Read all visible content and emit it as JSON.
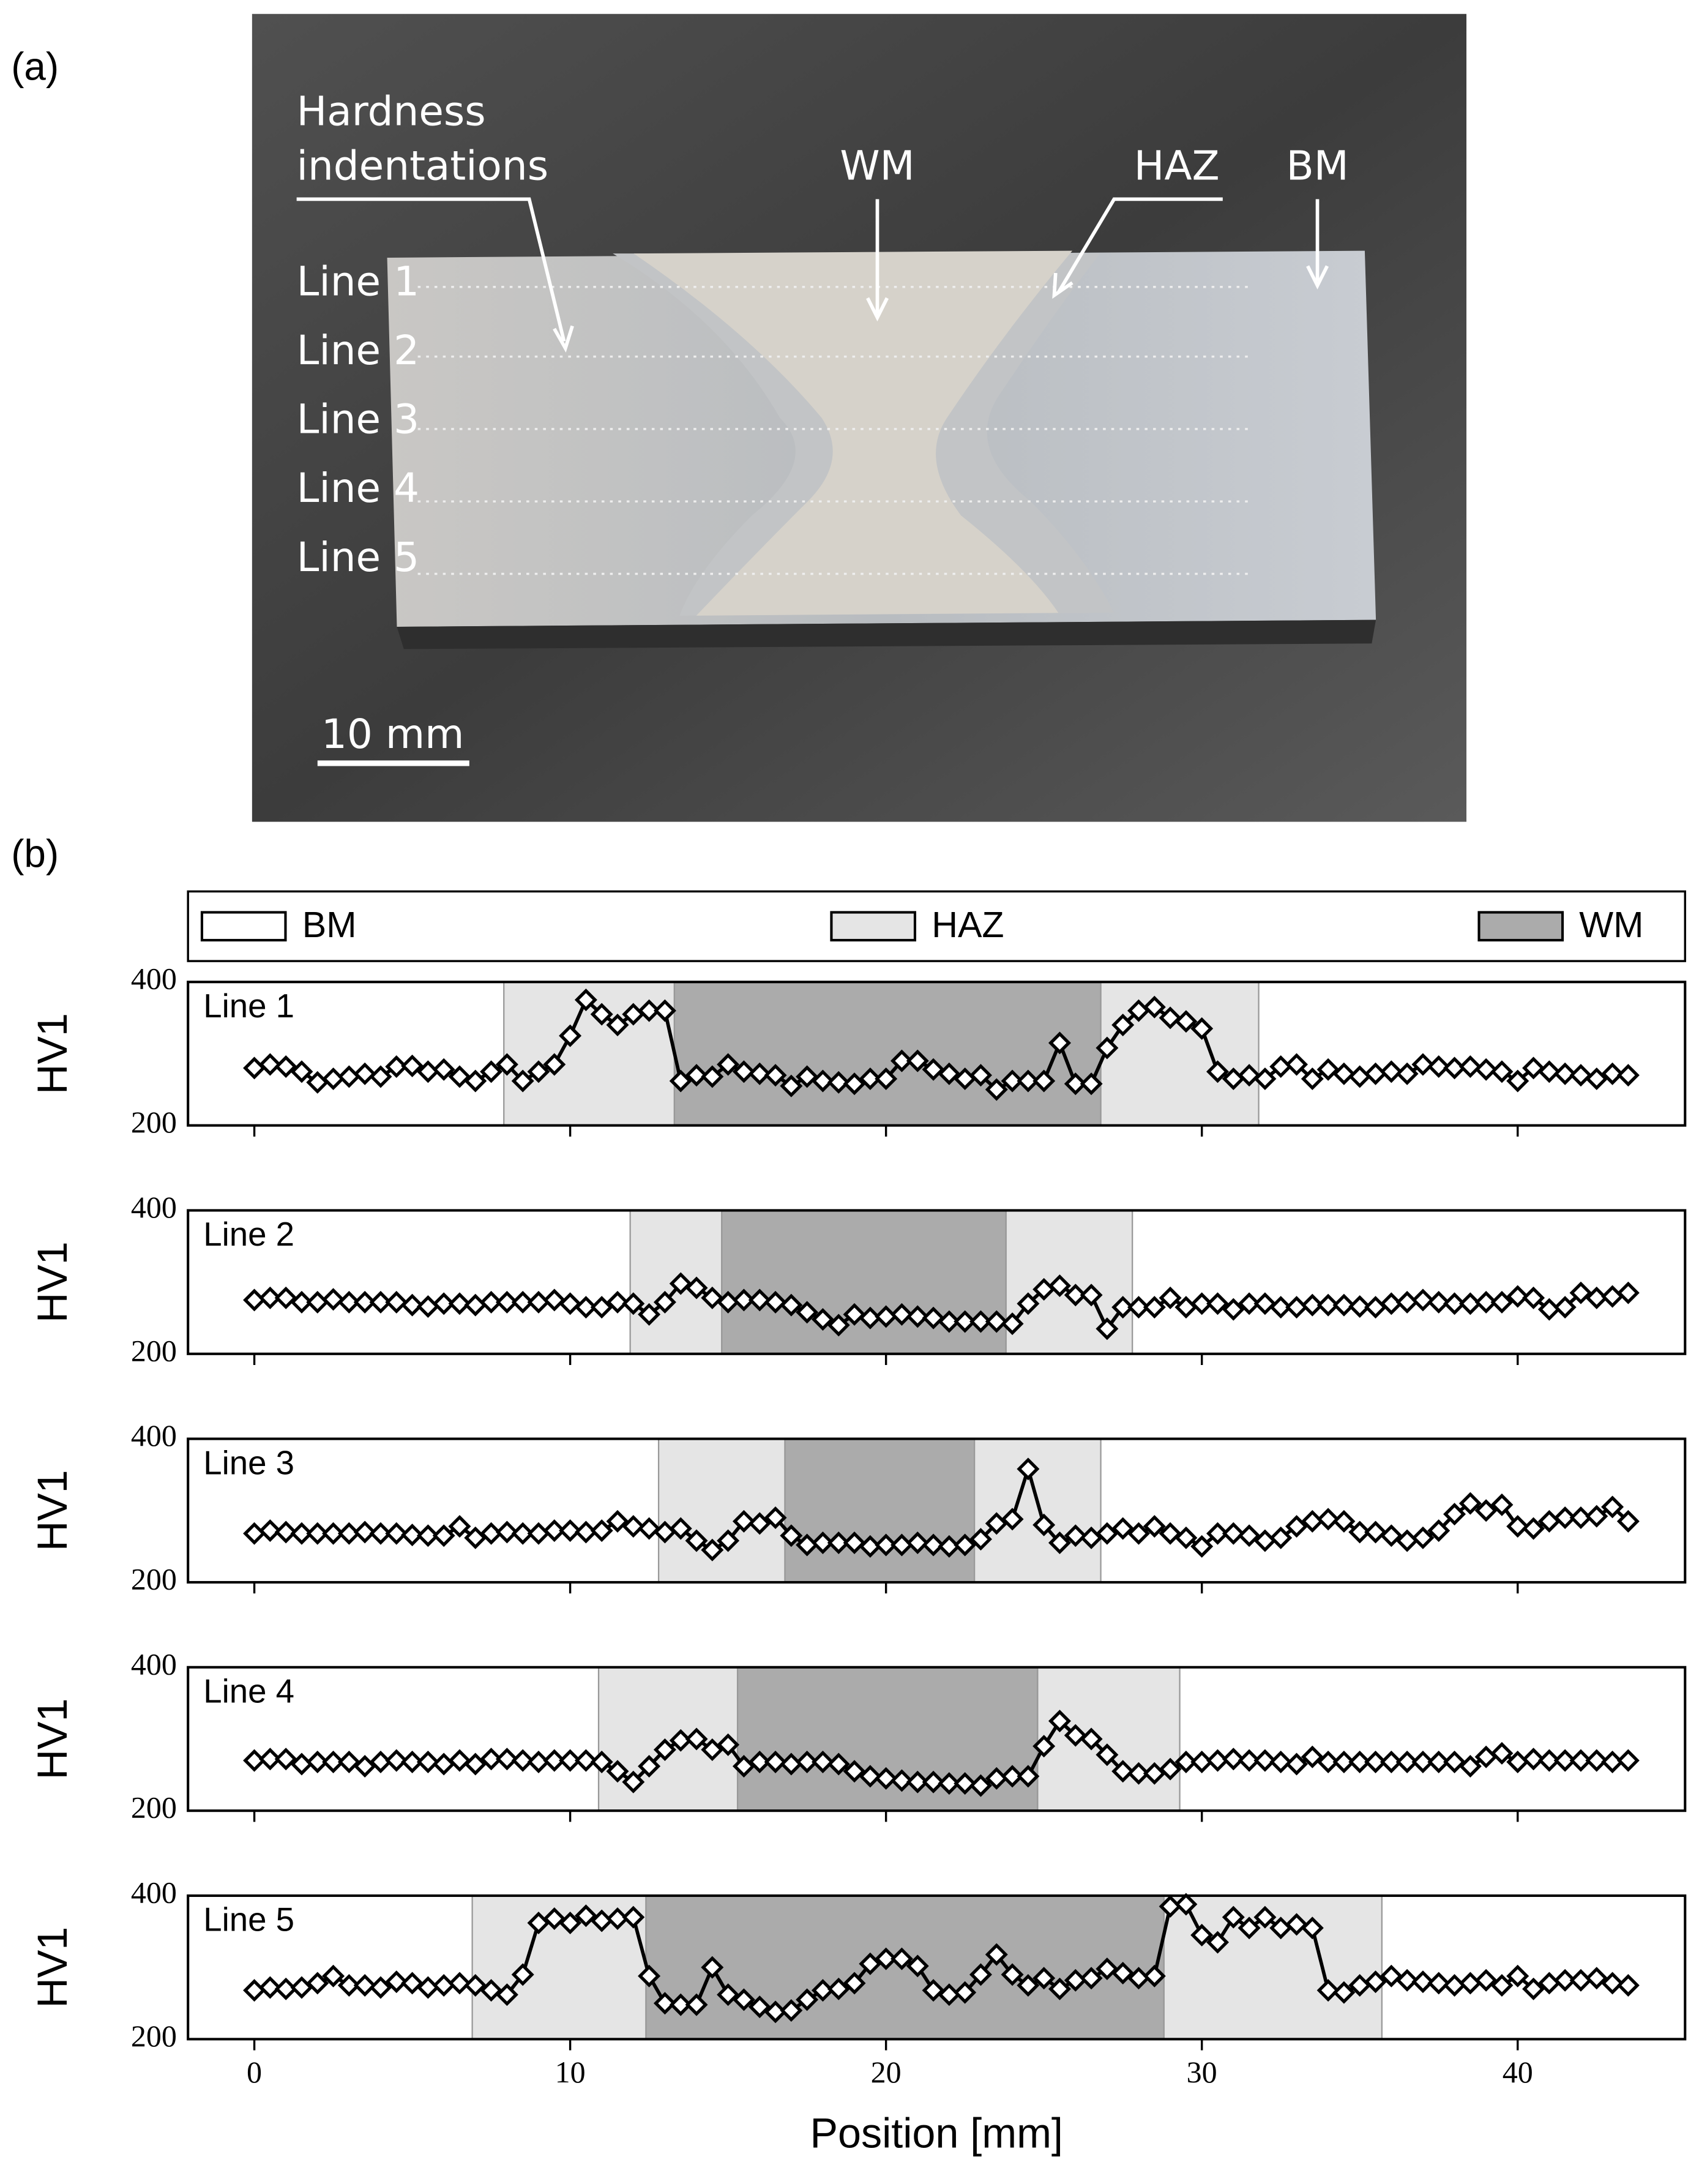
{
  "panel_a": {
    "label": "(a)",
    "annotations": [
      "Hardness",
      "indentations",
      "WM",
      "HAZ",
      "BM"
    ],
    "line_labels": [
      "Line 1",
      "Line 2",
      "Line 3",
      "Line 4",
      "Line 5"
    ],
    "scale_bar": "10 mm"
  },
  "panel_b_label": "(b)",
  "legend": [
    {
      "name": "BM",
      "color": "#ffffff"
    },
    {
      "name": "HAZ",
      "color": "#e5e5e5"
    },
    {
      "name": "WM",
      "color": "#ababab"
    }
  ],
  "chart_data": [
    {
      "type": "line",
      "title": "Line 1",
      "ylabel": "HV1",
      "xlim": [
        -2.1,
        45.3
      ],
      "ylim": [
        200,
        400
      ],
      "xticks": [
        0,
        10,
        20,
        30,
        40
      ],
      "yticks": [
        200,
        400
      ],
      "regions": [
        {
          "start": 7.9,
          "end": 13.3,
          "color": "#e5e5e5"
        },
        {
          "start": 13.3,
          "end": 26.8,
          "color": "#ababab"
        },
        {
          "start": 26.8,
          "end": 31.8,
          "color": "#e5e5e5"
        }
      ],
      "x": [
        0,
        0.5,
        1,
        1.5,
        2,
        2.5,
        3,
        3.5,
        4,
        4.5,
        5,
        5.5,
        6,
        6.5,
        7,
        7.5,
        8,
        8.5,
        9,
        9.5,
        10,
        10.5,
        11,
        11.5,
        12,
        12.5,
        13,
        13.5,
        14,
        14.5,
        15,
        15.5,
        16,
        16.5,
        17,
        17.5,
        18,
        18.5,
        19,
        19.5,
        20,
        20.5,
        21,
        21.5,
        22,
        22.5,
        23,
        23.5,
        24,
        24.5,
        25,
        25.5,
        26,
        26.5,
        27,
        27.5,
        28,
        28.5,
        29,
        29.5,
        30,
        30.5,
        31,
        31.5,
        32,
        32.5,
        33,
        33.5,
        34,
        34.5,
        35,
        35.5,
        36,
        36.5,
        37,
        37.5,
        38,
        38.5,
        39,
        39.5,
        40,
        40.5,
        41,
        41.5,
        42,
        42.5,
        43,
        43.5
      ],
      "series": [
        {
          "color": "#000000",
          "values": [
            280,
            285,
            282,
            275,
            260,
            265,
            268,
            272,
            268,
            282,
            283,
            275,
            278,
            268,
            262,
            275,
            285,
            262,
            275,
            285,
            325,
            375,
            355,
            340,
            355,
            360,
            360,
            262,
            270,
            268,
            285,
            275,
            272,
            270,
            255,
            268,
            262,
            260,
            258,
            265,
            265,
            290,
            290,
            278,
            272,
            265,
            270,
            250,
            262,
            262,
            262,
            315,
            258,
            258,
            308,
            340,
            360,
            365,
            350,
            345,
            335,
            275,
            265,
            270,
            265,
            282,
            285,
            265,
            278,
            272,
            268,
            272,
            275,
            272,
            285,
            282,
            280,
            282,
            278,
            275,
            262,
            280,
            275,
            272,
            270,
            265,
            272,
            270
          ]
        }
      ]
    },
    {
      "type": "line",
      "title": "Line 2",
      "ylabel": "HV1",
      "xlim": [
        -2.1,
        45.3
      ],
      "ylim": [
        200,
        400
      ],
      "xticks": [
        0,
        10,
        20,
        30,
        40
      ],
      "yticks": [
        200,
        400
      ],
      "regions": [
        {
          "start": 11.9,
          "end": 14.8,
          "color": "#e5e5e5"
        },
        {
          "start": 14.8,
          "end": 23.8,
          "color": "#ababab"
        },
        {
          "start": 23.8,
          "end": 27.8,
          "color": "#e5e5e5"
        }
      ],
      "x": [
        0,
        0.5,
        1,
        1.5,
        2,
        2.5,
        3,
        3.5,
        4,
        4.5,
        5,
        5.5,
        6,
        6.5,
        7,
        7.5,
        8,
        8.5,
        9,
        9.5,
        10,
        10.5,
        11,
        11.5,
        12,
        12.5,
        13,
        13.5,
        14,
        14.5,
        15,
        15.5,
        16,
        16.5,
        17,
        17.5,
        18,
        18.5,
        19,
        19.5,
        20,
        20.5,
        21,
        21.5,
        22,
        22.5,
        23,
        23.5,
        24,
        24.5,
        25,
        25.5,
        26,
        26.5,
        27,
        27.5,
        28,
        28.5,
        29,
        29.5,
        30,
        30.5,
        31,
        31.5,
        32,
        32.5,
        33,
        33.5,
        34,
        34.5,
        35,
        35.5,
        36,
        36.5,
        37,
        37.5,
        38,
        38.5,
        39,
        39.5,
        40,
        40.5,
        41,
        41.5,
        42,
        42.5,
        43,
        43.5
      ],
      "series": [
        {
          "color": "#000000",
          "values": [
            275,
            278,
            278,
            272,
            272,
            276,
            272,
            272,
            272,
            272,
            268,
            266,
            270,
            270,
            268,
            272,
            272,
            272,
            272,
            275,
            270,
            265,
            265,
            272,
            270,
            255,
            272,
            298,
            292,
            278,
            272,
            275,
            275,
            272,
            268,
            258,
            248,
            240,
            255,
            250,
            252,
            255,
            252,
            250,
            245,
            245,
            245,
            245,
            242,
            270,
            290,
            295,
            282,
            282,
            235,
            265,
            265,
            265,
            278,
            265,
            270,
            270,
            262,
            270,
            270,
            265,
            265,
            268,
            268,
            268,
            266,
            265,
            270,
            272,
            275,
            272,
            270,
            270,
            272,
            272,
            280,
            278,
            262,
            265,
            285,
            278,
            280,
            285
          ]
        }
      ]
    },
    {
      "type": "line",
      "title": "Line 3",
      "ylabel": "HV1",
      "xlim": [
        -2.1,
        45.3
      ],
      "ylim": [
        200,
        400
      ],
      "xticks": [
        0,
        10,
        20,
        30,
        40
      ],
      "yticks": [
        200,
        400
      ],
      "regions": [
        {
          "start": 12.8,
          "end": 16.8,
          "color": "#e5e5e5"
        },
        {
          "start": 16.8,
          "end": 22.8,
          "color": "#ababab"
        },
        {
          "start": 22.8,
          "end": 26.8,
          "color": "#e5e5e5"
        }
      ],
      "x": [
        0,
        0.5,
        1,
        1.5,
        2,
        2.5,
        3,
        3.5,
        4,
        4.5,
        5,
        5.5,
        6,
        6.5,
        7,
        7.5,
        8,
        8.5,
        9,
        9.5,
        10,
        10.5,
        11,
        11.5,
        12,
        12.5,
        13,
        13.5,
        14,
        14.5,
        15,
        15.5,
        16,
        16.5,
        17,
        17.5,
        18,
        18.5,
        19,
        19.5,
        20,
        20.5,
        21,
        21.5,
        22,
        22.5,
        23,
        23.5,
        24,
        24.5,
        25,
        25.5,
        26,
        26.5,
        27,
        27.5,
        28,
        28.5,
        29,
        29.5,
        30,
        30.5,
        31,
        31.5,
        32,
        32.5,
        33,
        33.5,
        34,
        34.5,
        35,
        35.5,
        36,
        36.5,
        37,
        37.5,
        38,
        38.5,
        39,
        39.5,
        40,
        40.5,
        41,
        41.5,
        42,
        42.5,
        43,
        43.5
      ],
      "series": [
        {
          "color": "#000000",
          "values": [
            268,
            272,
            270,
            268,
            268,
            268,
            268,
            270,
            268,
            268,
            266,
            265,
            265,
            278,
            262,
            268,
            270,
            268,
            268,
            272,
            272,
            270,
            272,
            285,
            278,
            275,
            270,
            275,
            258,
            245,
            258,
            285,
            282,
            290,
            265,
            252,
            255,
            255,
            255,
            250,
            252,
            252,
            255,
            252,
            250,
            252,
            260,
            282,
            288,
            358,
            280,
            255,
            265,
            262,
            268,
            275,
            268,
            278,
            268,
            262,
            250,
            268,
            268,
            265,
            258,
            262,
            278,
            285,
            288,
            285,
            270,
            270,
            265,
            258,
            262,
            272,
            295,
            310,
            300,
            308,
            278,
            275,
            285,
            290,
            290,
            292,
            305,
            285
          ]
        }
      ]
    },
    {
      "type": "line",
      "title": "Line 4",
      "ylabel": "HV1",
      "xlim": [
        -2.1,
        45.3
      ],
      "ylim": [
        200,
        400
      ],
      "xticks": [
        0,
        10,
        20,
        30,
        40
      ],
      "yticks": [
        200,
        400
      ],
      "regions": [
        {
          "start": 10.9,
          "end": 15.3,
          "color": "#e5e5e5"
        },
        {
          "start": 15.3,
          "end": 24.8,
          "color": "#ababab"
        },
        {
          "start": 24.8,
          "end": 29.3,
          "color": "#e5e5e5"
        }
      ],
      "x": [
        0,
        0.5,
        1,
        1.5,
        2,
        2.5,
        3,
        3.5,
        4,
        4.5,
        5,
        5.5,
        6,
        6.5,
        7,
        7.5,
        8,
        8.5,
        9,
        9.5,
        10,
        10.5,
        11,
        11.5,
        12,
        12.5,
        13,
        13.5,
        14,
        14.5,
        15,
        15.5,
        16,
        16.5,
        17,
        17.5,
        18,
        18.5,
        19,
        19.5,
        20,
        20.5,
        21,
        21.5,
        22,
        22.5,
        23,
        23.5,
        24,
        24.5,
        25,
        25.5,
        26,
        26.5,
        27,
        27.5,
        28,
        28.5,
        29,
        29.5,
        30,
        30.5,
        31,
        31.5,
        32,
        32.5,
        33,
        33.5,
        34,
        34.5,
        35,
        35.5,
        36,
        36.5,
        37,
        37.5,
        38,
        38.5,
        39,
        39.5,
        40,
        40.5,
        41,
        41.5,
        42,
        42.5,
        43,
        43.5
      ],
      "series": [
        {
          "color": "#000000",
          "values": [
            270,
            272,
            272,
            265,
            268,
            268,
            268,
            262,
            268,
            270,
            268,
            268,
            265,
            270,
            265,
            272,
            272,
            270,
            268,
            270,
            270,
            270,
            268,
            255,
            240,
            262,
            285,
            298,
            300,
            285,
            292,
            262,
            268,
            268,
            265,
            268,
            268,
            265,
            255,
            248,
            245,
            242,
            240,
            240,
            238,
            238,
            235,
            245,
            248,
            248,
            290,
            325,
            305,
            300,
            278,
            255,
            252,
            252,
            258,
            268,
            268,
            270,
            272,
            270,
            270,
            268,
            265,
            275,
            268,
            268,
            268,
            268,
            268,
            268,
            268,
            268,
            268,
            262,
            275,
            280,
            268,
            272,
            270,
            270,
            270,
            270,
            268,
            270
          ]
        }
      ]
    },
    {
      "type": "line",
      "title": "Line 5",
      "ylabel": "HV1",
      "xlabel": "Position [mm]",
      "xlim": [
        -2.1,
        45.3
      ],
      "ylim": [
        200,
        400
      ],
      "xticks": [
        0,
        10,
        20,
        30,
        40
      ],
      "yticks": [
        200,
        400
      ],
      "regions": [
        {
          "start": 6.9,
          "end": 12.4,
          "color": "#e5e5e5"
        },
        {
          "start": 12.4,
          "end": 28.8,
          "color": "#ababab"
        },
        {
          "start": 28.8,
          "end": 35.7,
          "color": "#e5e5e5"
        }
      ],
      "x": [
        0,
        0.5,
        1,
        1.5,
        2,
        2.5,
        3,
        3.5,
        4,
        4.5,
        5,
        5.5,
        6,
        6.5,
        7,
        7.5,
        8,
        8.5,
        9,
        9.5,
        10,
        10.5,
        11,
        11.5,
        12,
        12.5,
        13,
        13.5,
        14,
        14.5,
        15,
        15.5,
        16,
        16.5,
        17,
        17.5,
        18,
        18.5,
        19,
        19.5,
        20,
        20.5,
        21,
        21.5,
        22,
        22.5,
        23,
        23.5,
        24,
        24.5,
        25,
        25.5,
        26,
        26.5,
        27,
        27.5,
        28,
        28.5,
        29,
        29.5,
        30,
        30.5,
        31,
        31.5,
        32,
        32.5,
        33,
        33.5,
        34,
        34.5,
        35,
        35.5,
        36,
        36.5,
        37,
        37.5,
        38,
        38.5,
        39,
        39.5,
        40,
        40.5,
        41,
        41.5,
        42,
        42.5,
        43,
        43.5
      ],
      "series": [
        {
          "color": "#000000",
          "values": [
            268,
            272,
            270,
            272,
            278,
            288,
            275,
            275,
            272,
            280,
            278,
            272,
            275,
            278,
            275,
            268,
            262,
            290,
            362,
            368,
            362,
            372,
            365,
            368,
            370,
            288,
            250,
            248,
            248,
            300,
            262,
            255,
            245,
            238,
            240,
            255,
            268,
            270,
            278,
            305,
            312,
            312,
            302,
            268,
            262,
            265,
            290,
            318,
            290,
            275,
            285,
            270,
            282,
            285,
            298,
            292,
            285,
            288,
            385,
            388,
            345,
            335,
            370,
            355,
            370,
            355,
            360,
            355,
            268,
            265,
            275,
            280,
            288,
            282,
            280,
            278,
            275,
            278,
            282,
            275,
            288,
            270,
            278,
            282,
            282,
            285,
            278,
            275
          ]
        }
      ]
    }
  ]
}
